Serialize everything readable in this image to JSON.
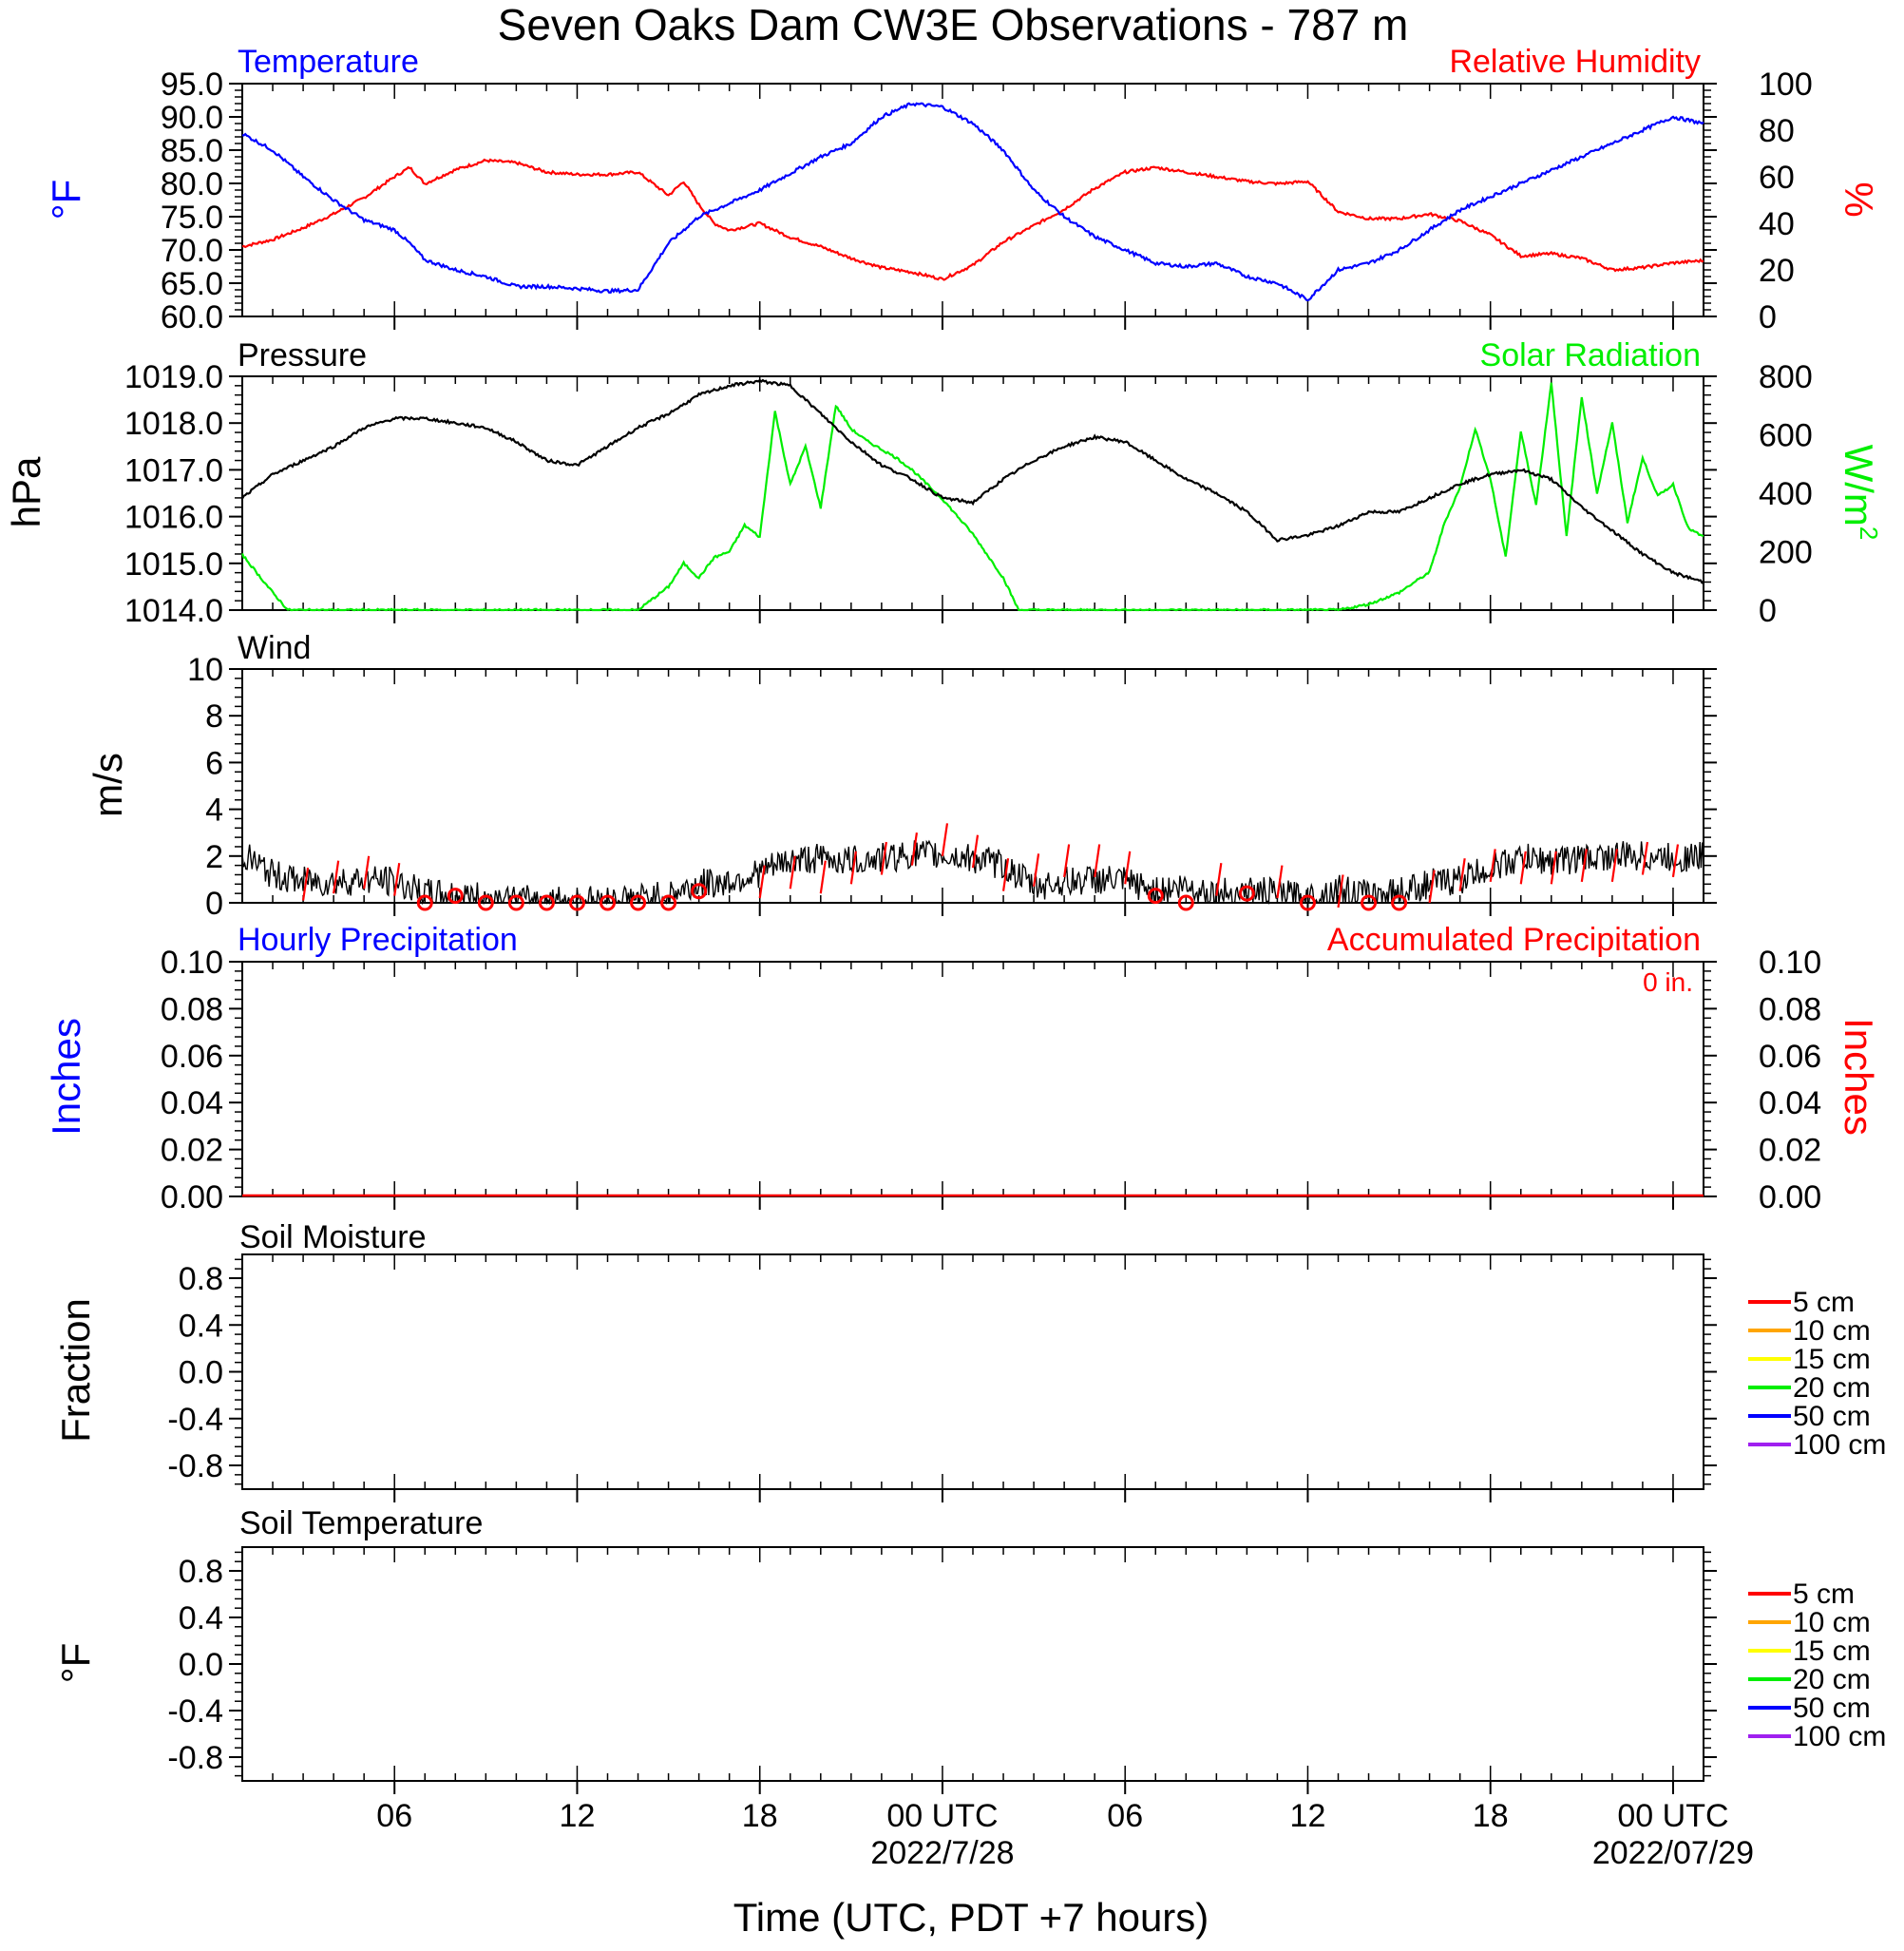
{
  "title": "Seven Oaks Dam CW3E Observations - 787 m",
  "xlabel": "Time (UTC, PDT +7 hours)",
  "x_ticks": [
    {
      "h": 6,
      "label": "06",
      "sub": ""
    },
    {
      "h": 12,
      "label": "12",
      "sub": ""
    },
    {
      "h": 18,
      "label": "18",
      "sub": ""
    },
    {
      "h": 24,
      "label": "00 UTC",
      "sub": "2022/7/28"
    },
    {
      "h": 30,
      "label": "06",
      "sub": ""
    },
    {
      "h": 36,
      "label": "12",
      "sub": ""
    },
    {
      "h": 42,
      "label": "18",
      "sub": ""
    },
    {
      "h": 48,
      "label": "00 UTC",
      "sub": "2022/07/29"
    }
  ],
  "x_range_hours": [
    1,
    49
  ],
  "colors": {
    "temperature": "#0000ff",
    "humidity": "#ff0000",
    "pressure": "#000000",
    "solar": "#00ee00",
    "wind": "#000000",
    "wind_barb": "#ff0000",
    "precip_hourly": "#0000ff",
    "precip_accum": "#ff0000"
  },
  "panels": {
    "temp_rh": {
      "left_title": "Temperature",
      "right_title": "Relative Humidity",
      "left_ylabel": "°F",
      "right_ylabel": "%",
      "left_ticks": [
        "95.0",
        "90.0",
        "85.0",
        "80.0",
        "75.0",
        "70.0",
        "65.0",
        "60.0"
      ],
      "right_ticks": [
        "100",
        "80",
        "60",
        "40",
        "20",
        "0"
      ]
    },
    "pressure_solar": {
      "left_title": "Pressure",
      "right_title": "Solar Radiation",
      "left_ylabel": "hPa",
      "right_ylabel": "W/m",
      "right_ylabel_sup": "2",
      "left_ticks": [
        "1019.0",
        "1018.0",
        "1017.0",
        "1016.0",
        "1015.0",
        "1014.0"
      ],
      "right_ticks": [
        "800",
        "600",
        "400",
        "200",
        "0"
      ]
    },
    "wind": {
      "left_title": "Wind",
      "left_ylabel": "m/s",
      "left_ticks": [
        "10",
        "8",
        "6",
        "4",
        "2",
        "0"
      ]
    },
    "precip": {
      "left_title": "Hourly Precipitation",
      "right_title": "Accumulated Precipitation",
      "accum_label": "0 in.",
      "left_ylabel": "Inches",
      "right_ylabel": "Inches",
      "left_ticks": [
        "0.10",
        "0.08",
        "0.06",
        "0.04",
        "0.02",
        "0.00"
      ],
      "right_ticks": [
        "0.10",
        "0.08",
        "0.06",
        "0.04",
        "0.02",
        "0.00"
      ]
    },
    "soil_moisture": {
      "left_title": "Soil Moisture",
      "left_ylabel": "Fraction",
      "left_ticks": [
        "0.8",
        "0.4",
        "0.0",
        "-0.4",
        "-0.8"
      ],
      "legend": [
        "5 cm",
        "10 cm",
        "15 cm",
        "20 cm",
        "50 cm",
        "100 cm"
      ]
    },
    "soil_temp": {
      "left_title": "Soil Temperature",
      "left_ylabel": "°F",
      "left_ticks": [
        "0.8",
        "0.4",
        "0.0",
        "-0.4",
        "-0.8"
      ],
      "legend": [
        "5 cm",
        "10 cm",
        "15 cm",
        "20 cm",
        "50 cm",
        "100 cm"
      ]
    }
  },
  "legend_colors": [
    "#ff0000",
    "#ffa500",
    "#ffff00",
    "#00ee00",
    "#0000ff",
    "#a020f0"
  ],
  "chart_data": [
    {
      "type": "line",
      "panel": "Temperature / Relative Humidity",
      "x_unit": "hours since 2022-07-27 00 UTC",
      "series": [
        {
          "name": "Temperature",
          "unit": "°F",
          "ylim": [
            60,
            95
          ],
          "x": [
            1,
            2,
            3,
            4,
            5,
            6,
            6.5,
            7,
            8,
            9,
            10,
            11,
            12,
            13,
            14,
            15,
            16,
            17,
            18,
            19,
            20,
            21,
            22,
            23,
            24,
            25,
            26,
            27,
            28,
            29,
            30,
            31,
            32,
            33,
            34,
            35,
            36,
            37,
            38,
            39,
            40,
            41,
            42,
            43,
            44,
            45,
            46,
            47,
            48,
            49
          ],
          "y": [
            87.5,
            85,
            81,
            77.5,
            74.5,
            73,
            71,
            68.5,
            67,
            66,
            64.5,
            64.5,
            64.2,
            63.8,
            64,
            71,
            75,
            77,
            79,
            81.5,
            84,
            86,
            90,
            92,
            91.5,
            89,
            85,
            79,
            75,
            72,
            70,
            68,
            67.5,
            68,
            66,
            65,
            62.5,
            67,
            68,
            70,
            73,
            76,
            78,
            80,
            82,
            84,
            86,
            88,
            90,
            89
          ]
        },
        {
          "name": "Relative Humidity",
          "unit": "%",
          "ylim": [
            0,
            100
          ],
          "x": [
            1,
            2,
            3,
            4,
            5,
            6,
            6.5,
            7,
            8,
            9,
            10,
            11,
            12,
            13,
            14,
            15,
            15.5,
            16,
            16.5,
            17,
            18,
            19,
            20,
            21,
            22,
            23,
            24,
            25,
            26,
            27,
            28,
            29,
            30,
            31,
            32,
            33,
            34,
            35,
            36,
            37,
            38,
            39,
            40,
            41,
            42,
            43,
            44,
            45,
            46,
            47,
            48,
            49
          ],
          "y": [
            30,
            33,
            38,
            44,
            51,
            60,
            64,
            57,
            63,
            67,
            66,
            62,
            61,
            61,
            62,
            52,
            58,
            48,
            40,
            37,
            40,
            34,
            30,
            25,
            21,
            19,
            16,
            22,
            32,
            39,
            46,
            55,
            62,
            64,
            62,
            60,
            58,
            57,
            58,
            45,
            42,
            42,
            44,
            41,
            35,
            26,
            27,
            25,
            20,
            21,
            23,
            24
          ]
        }
      ]
    },
    {
      "type": "line",
      "panel": "Pressure / Solar Radiation",
      "x_unit": "hours since 2022-07-27 00 UTC",
      "series": [
        {
          "name": "Pressure",
          "unit": "hPa",
          "ylim": [
            1014,
            1019
          ],
          "x": [
            1,
            2,
            3,
            4,
            5,
            6,
            7,
            8,
            9,
            10,
            11,
            12,
            13,
            14,
            15,
            16,
            17,
            18,
            19,
            20,
            21,
            22,
            23,
            24,
            25,
            26,
            27,
            28,
            29,
            30,
            31,
            32,
            33,
            34,
            35,
            36,
            37,
            38,
            39,
            40,
            41,
            42,
            43,
            44,
            45,
            46,
            47,
            48,
            49
          ],
          "y": [
            1016.4,
            1016.9,
            1017.2,
            1017.5,
            1017.9,
            1018.1,
            1018.1,
            1018.0,
            1017.9,
            1017.6,
            1017.2,
            1017.1,
            1017.5,
            1017.9,
            1018.2,
            1018.6,
            1018.8,
            1018.9,
            1018.8,
            1018.2,
            1017.6,
            1017.1,
            1016.8,
            1016.4,
            1016.3,
            1016.8,
            1017.2,
            1017.5,
            1017.7,
            1017.6,
            1017.2,
            1016.8,
            1016.5,
            1016.1,
            1015.5,
            1015.6,
            1015.8,
            1016.1,
            1016.1,
            1016.4,
            1016.7,
            1016.9,
            1017.0,
            1016.8,
            1016.2,
            1015.7,
            1015.2,
            1014.8,
            1014.6
          ]
        },
        {
          "name": "Solar Radiation",
          "unit": "W/m2",
          "ylim": [
            0,
            800
          ],
          "x": [
            1,
            2,
            2.5,
            3,
            4,
            5,
            6,
            7,
            8,
            9,
            10,
            11,
            12,
            13,
            14,
            15,
            15.5,
            16,
            16.5,
            17,
            17.5,
            18,
            18.5,
            19,
            19.5,
            20,
            20.5,
            21,
            21.5,
            22,
            22.5,
            23,
            24,
            25,
            26,
            26.5,
            27,
            28,
            30,
            32,
            34,
            36,
            37,
            38,
            39,
            40,
            40.5,
            41,
            41.5,
            42,
            42.5,
            43,
            43.5,
            44,
            44.5,
            45,
            45.5,
            46,
            46.5,
            47,
            47.5,
            48,
            48.5,
            49
          ],
          "y": [
            190,
            60,
            0,
            0,
            0,
            0,
            0,
            0,
            0,
            0,
            0,
            0,
            0,
            0,
            0,
            80,
            160,
            110,
            180,
            200,
            290,
            250,
            680,
            430,
            560,
            350,
            700,
            620,
            580,
            550,
            520,
            480,
            380,
            260,
            110,
            0,
            0,
            0,
            0,
            0,
            0,
            0,
            0,
            20,
            60,
            130,
            300,
            420,
            620,
            450,
            180,
            610,
            360,
            780,
            250,
            730,
            400,
            640,
            300,
            520,
            390,
            430,
            280,
            250
          ]
        }
      ]
    },
    {
      "type": "line",
      "panel": "Wind",
      "x_unit": "hours since 2022-07-27 00 UTC",
      "series": [
        {
          "name": "Wind",
          "unit": "m/s",
          "ylim": [
            0,
            10
          ],
          "x": [
            1,
            2,
            3,
            4,
            5,
            6,
            7,
            8,
            9,
            10,
            11,
            12,
            13,
            14,
            15,
            16,
            17,
            18,
            19,
            20,
            21,
            22,
            23,
            24,
            25,
            26,
            27,
            28,
            29,
            30,
            31,
            32,
            33,
            34,
            35,
            36,
            37,
            38,
            39,
            40,
            41,
            42,
            43,
            44,
            45,
            46,
            47,
            48,
            49
          ],
          "y": [
            2.1,
            1.2,
            0.9,
            0.9,
            1.0,
            0.9,
            0.4,
            0.3,
            0.2,
            0.1,
            0.1,
            0.1,
            0.1,
            0.2,
            0.3,
            0.8,
            0.9,
            1.3,
            1.8,
            1.9,
            1.8,
            1.9,
            2.1,
            2.0,
            1.9,
            1.6,
            0.7,
            0.9,
            1.0,
            0.9,
            0.5,
            0.7,
            0.4,
            0.5,
            0.4,
            0.2,
            0.6,
            0.3,
            0.5,
            0.8,
            1.0,
            1.5,
            1.9,
            1.8,
            1.9,
            2.0,
            2.0,
            1.9,
            2.0
          ]
        },
        {
          "name": "Wind barbs (hourly)",
          "unit": "m/s",
          "x": [
            3,
            4,
            5,
            6,
            7,
            8,
            9,
            10,
            11,
            12,
            13,
            14,
            15,
            16,
            18,
            19,
            20,
            21,
            22,
            23,
            24,
            25,
            26,
            27,
            28,
            29,
            30,
            31,
            32,
            33,
            34,
            35,
            36,
            37,
            38,
            39,
            40,
            41,
            42,
            43,
            44,
            45,
            46,
            47,
            48
          ],
          "y": [
            1.5,
            1.8,
            2.0,
            1.7,
            0,
            0.3,
            0,
            0,
            0,
            0,
            0,
            0,
            0,
            0.5,
            1.6,
            2.0,
            1.8,
            2.2,
            2.6,
            3.0,
            3.4,
            2.9,
            1.9,
            2.1,
            2.5,
            2.5,
            2.2,
            0.3,
            0,
            1.7,
            0.4,
            1.6,
            0,
            1.2,
            0,
            0,
            1.4,
            1.9,
            2.3,
            2.2,
            2.2,
            2.3,
            2.3,
            2.6,
            2.5
          ]
        }
      ]
    },
    {
      "type": "line",
      "panel": "Hourly / Accumulated Precipitation",
      "series": [
        {
          "name": "Hourly Precipitation",
          "unit": "in",
          "ylim": [
            0,
            0.1
          ],
          "x": [
            1,
            49
          ],
          "y": [
            0,
            0
          ]
        },
        {
          "name": "Accumulated Precipitation",
          "unit": "in",
          "ylim": [
            0,
            0.1
          ],
          "x": [
            1,
            49
          ],
          "y": [
            0,
            0
          ]
        }
      ]
    },
    {
      "type": "line",
      "panel": "Soil Moisture",
      "ylim": [
        -1,
        1
      ],
      "series": []
    },
    {
      "type": "line",
      "panel": "Soil Temperature",
      "ylim": [
        -1,
        1
      ],
      "series": []
    }
  ]
}
